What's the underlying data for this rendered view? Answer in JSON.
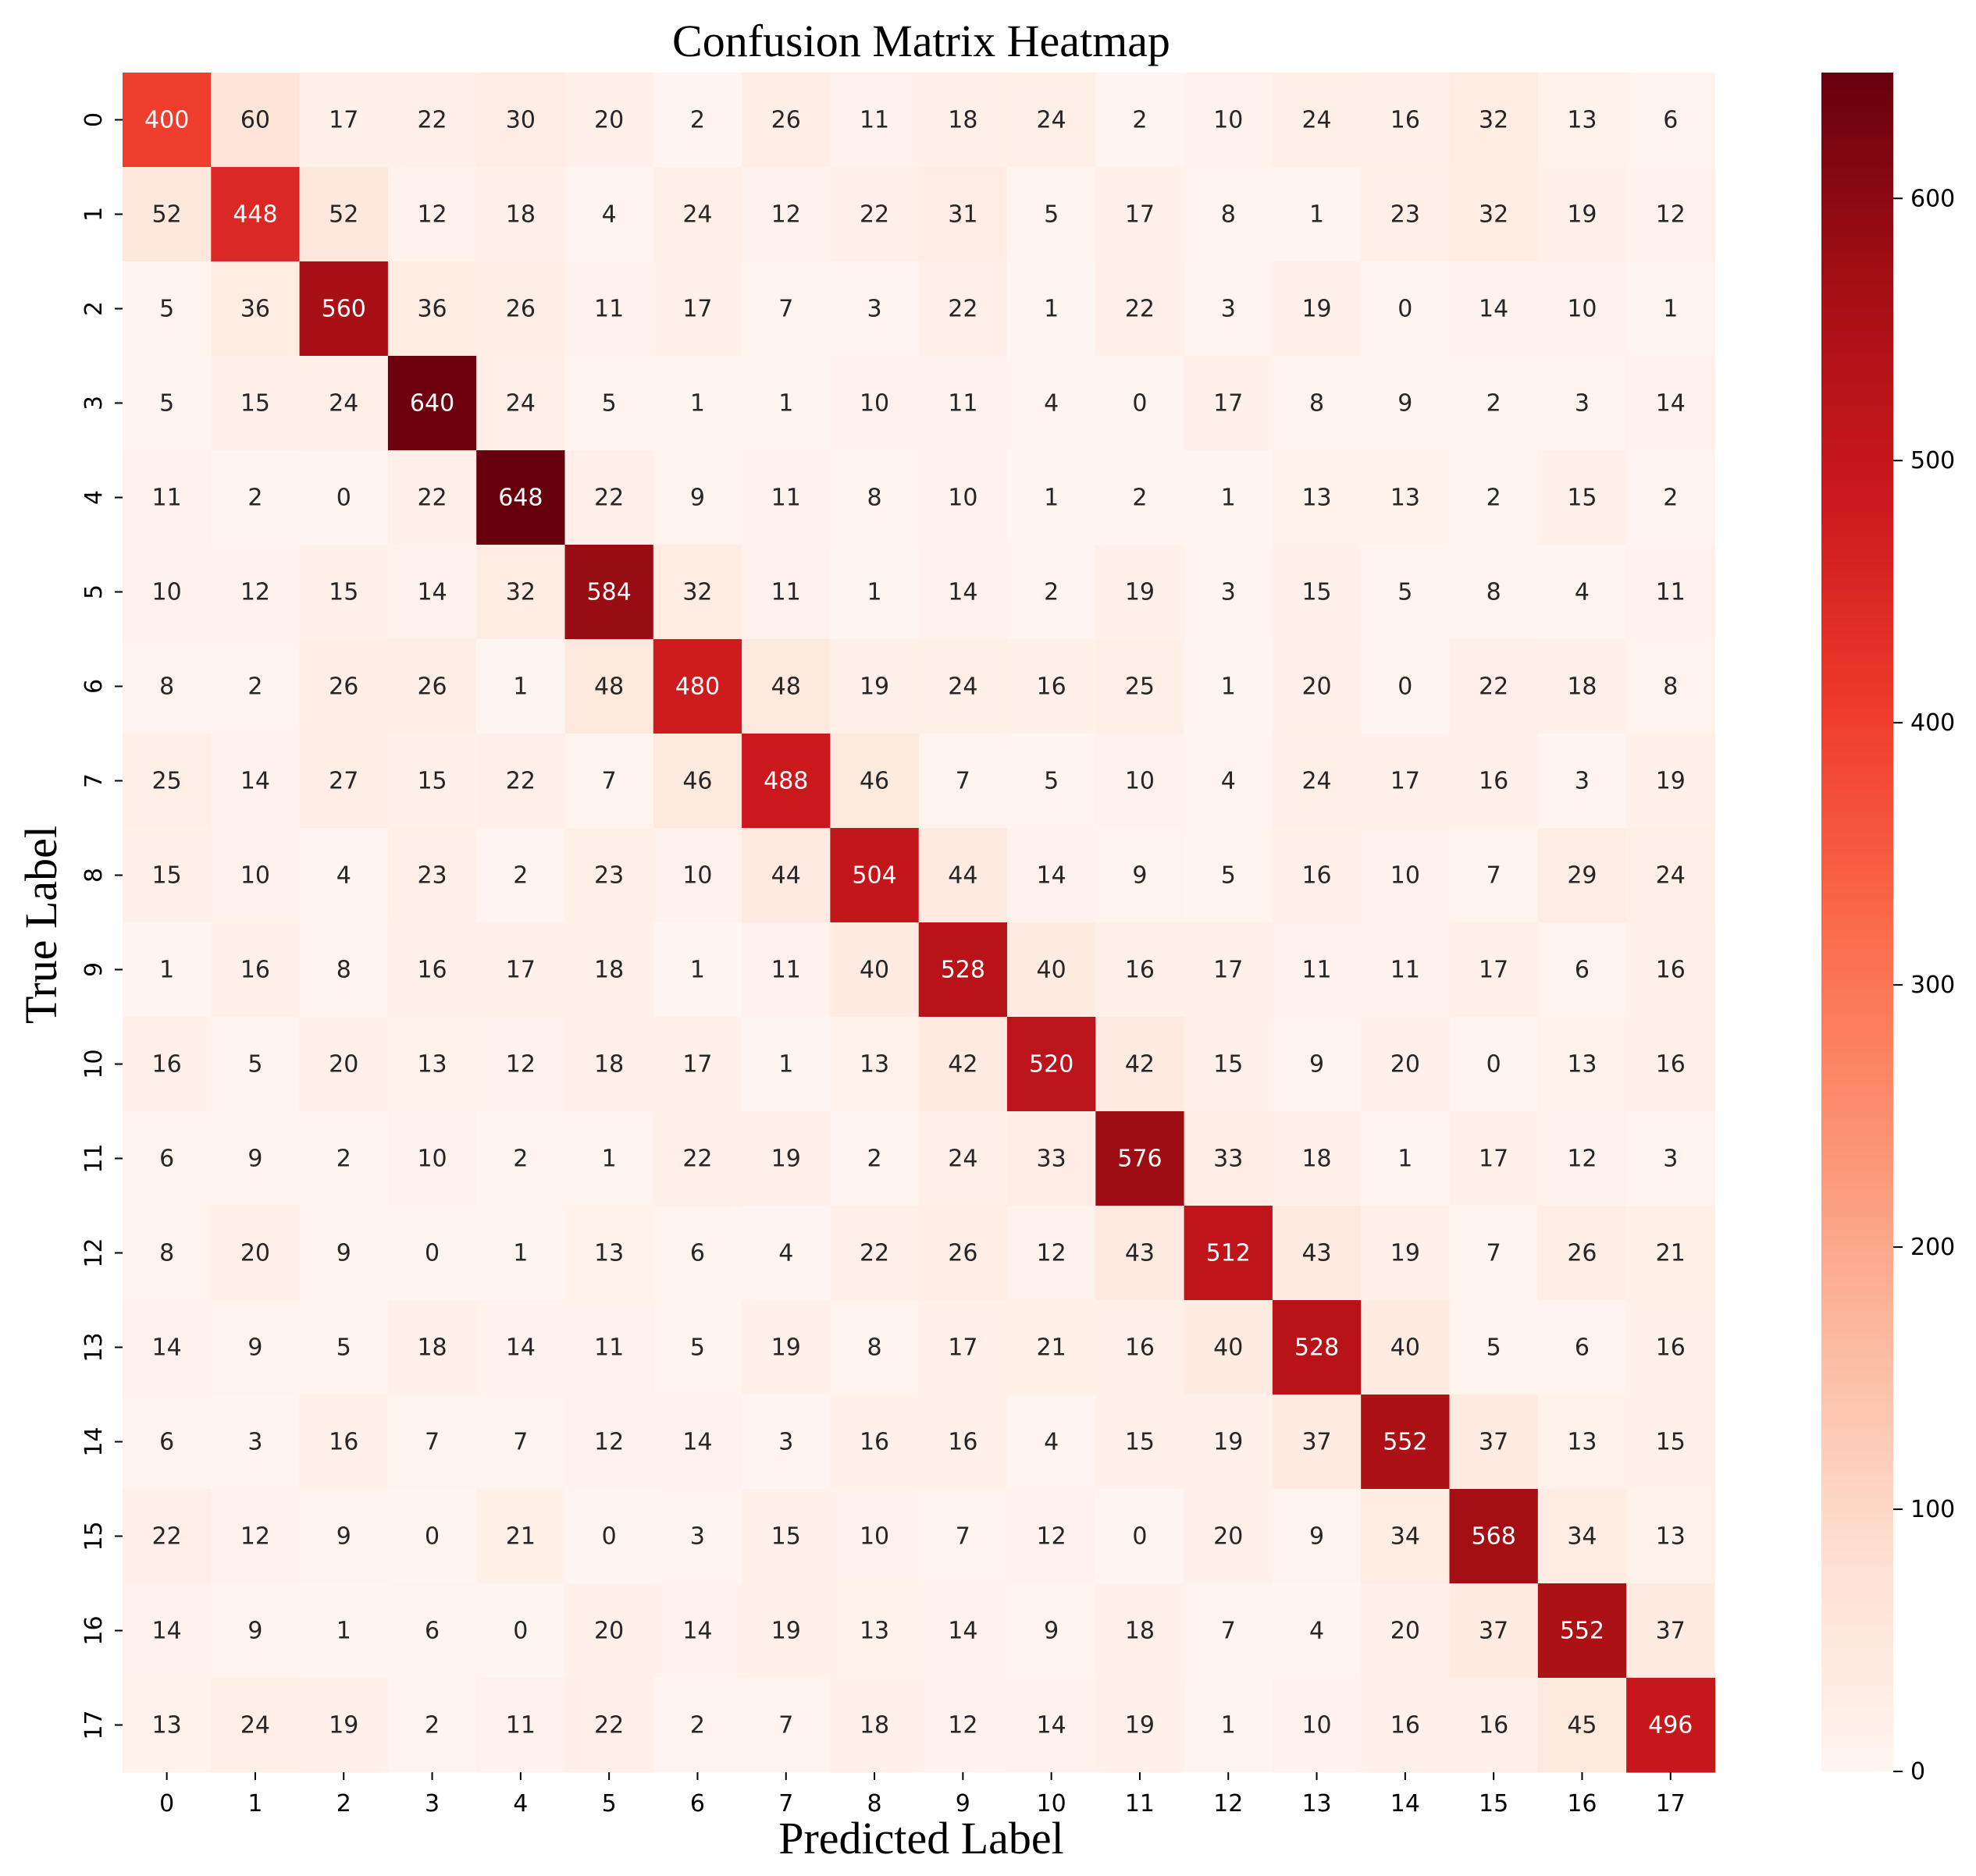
{
  "chart_data": {
    "type": "heatmap",
    "title": "Confusion Matrix Heatmap",
    "xlabel": "Predicted Label",
    "ylabel": "True Label",
    "x_categories": [
      "0",
      "1",
      "2",
      "3",
      "4",
      "5",
      "6",
      "7",
      "8",
      "9",
      "10",
      "11",
      "12",
      "13",
      "14",
      "15",
      "16",
      "17"
    ],
    "y_categories": [
      "0",
      "1",
      "2",
      "3",
      "4",
      "5",
      "6",
      "7",
      "8",
      "9",
      "10",
      "11",
      "12",
      "13",
      "14",
      "15",
      "16",
      "17"
    ],
    "matrix": [
      [
        400,
        60,
        17,
        22,
        30,
        20,
        2,
        26,
        11,
        18,
        24,
        2,
        10,
        24,
        16,
        32,
        13,
        6
      ],
      [
        52,
        448,
        52,
        12,
        18,
        4,
        24,
        12,
        22,
        31,
        5,
        17,
        8,
        1,
        23,
        32,
        19,
        12
      ],
      [
        5,
        36,
        560,
        36,
        26,
        11,
        17,
        7,
        3,
        22,
        1,
        22,
        3,
        19,
        0,
        14,
        10,
        1
      ],
      [
        5,
        15,
        24,
        640,
        24,
        5,
        1,
        1,
        10,
        11,
        4,
        0,
        17,
        8,
        9,
        2,
        3,
        14
      ],
      [
        11,
        2,
        0,
        22,
        648,
        22,
        9,
        11,
        8,
        10,
        1,
        2,
        1,
        13,
        13,
        2,
        15,
        2
      ],
      [
        10,
        12,
        15,
        14,
        32,
        584,
        32,
        11,
        1,
        14,
        2,
        19,
        3,
        15,
        5,
        8,
        4,
        11
      ],
      [
        8,
        2,
        26,
        26,
        1,
        48,
        480,
        48,
        19,
        24,
        16,
        25,
        1,
        20,
        0,
        22,
        18,
        8
      ],
      [
        25,
        14,
        27,
        15,
        22,
        7,
        46,
        488,
        46,
        7,
        5,
        10,
        4,
        24,
        17,
        16,
        3,
        19
      ],
      [
        15,
        10,
        4,
        23,
        2,
        23,
        10,
        44,
        504,
        44,
        14,
        9,
        5,
        16,
        10,
        7,
        29,
        24
      ],
      [
        1,
        16,
        8,
        16,
        17,
        18,
        1,
        11,
        40,
        528,
        40,
        16,
        17,
        11,
        11,
        17,
        6,
        16
      ],
      [
        16,
        5,
        20,
        13,
        12,
        18,
        17,
        1,
        13,
        42,
        520,
        42,
        15,
        9,
        20,
        0,
        13,
        16
      ],
      [
        6,
        9,
        2,
        10,
        2,
        1,
        22,
        19,
        2,
        24,
        33,
        576,
        33,
        18,
        1,
        17,
        12,
        3
      ],
      [
        8,
        20,
        9,
        0,
        1,
        13,
        6,
        4,
        22,
        26,
        12,
        43,
        512,
        43,
        19,
        7,
        26,
        21
      ],
      [
        14,
        9,
        5,
        18,
        14,
        11,
        5,
        19,
        8,
        17,
        21,
        16,
        40,
        528,
        40,
        5,
        6,
        16
      ],
      [
        6,
        3,
        16,
        7,
        7,
        12,
        14,
        3,
        16,
        16,
        4,
        15,
        19,
        37,
        552,
        37,
        13,
        15
      ],
      [
        22,
        12,
        9,
        0,
        21,
        0,
        3,
        15,
        10,
        7,
        12,
        0,
        20,
        9,
        34,
        568,
        34,
        13
      ],
      [
        14,
        9,
        1,
        6,
        0,
        20,
        14,
        19,
        13,
        14,
        9,
        18,
        7,
        4,
        20,
        37,
        552,
        37
      ],
      [
        13,
        24,
        19,
        2,
        11,
        22,
        2,
        7,
        18,
        12,
        14,
        19,
        1,
        10,
        16,
        16,
        45,
        496
      ]
    ],
    "colormap": "Reds",
    "colorbar": {
      "min": 0,
      "max": 648,
      "ticks": [
        0,
        100,
        200,
        300,
        400,
        500,
        600
      ]
    }
  }
}
